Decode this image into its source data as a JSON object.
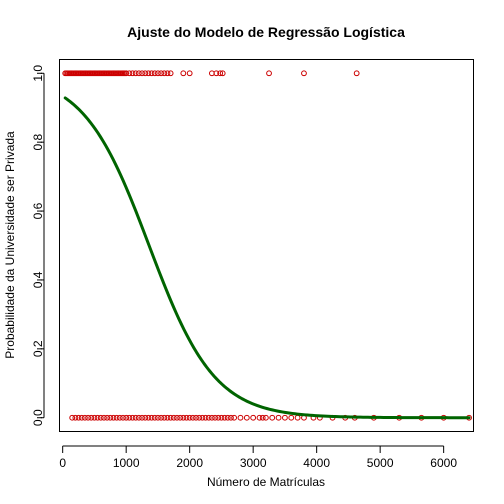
{
  "chart_data": {
    "type": "scatter",
    "title": "Ajuste do Modelo de Regressão Logística",
    "xlabel": "Número de Matrículas",
    "ylabel": "Probabilidade da Universidade ser Privada",
    "xlim": [
      -50,
      6470
    ],
    "ylim": [
      -0.04,
      1.04
    ],
    "xticks": [
      0,
      1000,
      2000,
      3000,
      4000,
      5000,
      6000
    ],
    "yticks": [
      "0.0",
      "0.2",
      "0.4",
      "0.6",
      "0.8",
      "1.0"
    ],
    "colors": {
      "points": "#cc0000",
      "curve": "#006400"
    },
    "series": [
      {
        "kind": "points",
        "y": 1,
        "x": [
          40,
          60,
          80,
          100,
          120,
          140,
          160,
          180,
          200,
          220,
          240,
          260,
          280,
          300,
          320,
          340,
          360,
          380,
          400,
          420,
          440,
          460,
          480,
          500,
          520,
          540,
          560,
          580,
          600,
          620,
          640,
          660,
          680,
          700,
          720,
          740,
          760,
          780,
          800,
          820,
          840,
          860,
          880,
          900,
          920,
          940,
          960,
          980,
          1000,
          1050,
          1100,
          1150,
          1200,
          1250,
          1300,
          1350,
          1400,
          1450,
          1500,
          1550,
          1600,
          1650,
          1700,
          1900,
          2000,
          2350,
          2420,
          2480,
          2520,
          3250,
          3800,
          4630
        ]
      },
      {
        "kind": "points",
        "y": 0,
        "x": [
          150,
          200,
          250,
          300,
          350,
          400,
          450,
          500,
          550,
          600,
          650,
          700,
          750,
          800,
          850,
          900,
          950,
          1000,
          1050,
          1100,
          1150,
          1200,
          1250,
          1300,
          1350,
          1400,
          1450,
          1500,
          1550,
          1600,
          1650,
          1700,
          1750,
          1800,
          1850,
          1900,
          1950,
          2000,
          2050,
          2100,
          2150,
          2200,
          2250,
          2300,
          2350,
          2400,
          2450,
          2500,
          2550,
          2600,
          2650,
          2700,
          2800,
          2900,
          3000,
          3100,
          3150,
          3200,
          3300,
          3400,
          3500,
          3600,
          3700,
          3800,
          3950,
          4050,
          4250,
          4450,
          4600,
          4900,
          5300,
          5650,
          6000,
          6400
        ]
      },
      {
        "kind": "curve",
        "model": "logistic",
        "intercept": 2.64,
        "slope": -0.00194,
        "x_range": [
          40,
          6400
        ]
      }
    ]
  }
}
